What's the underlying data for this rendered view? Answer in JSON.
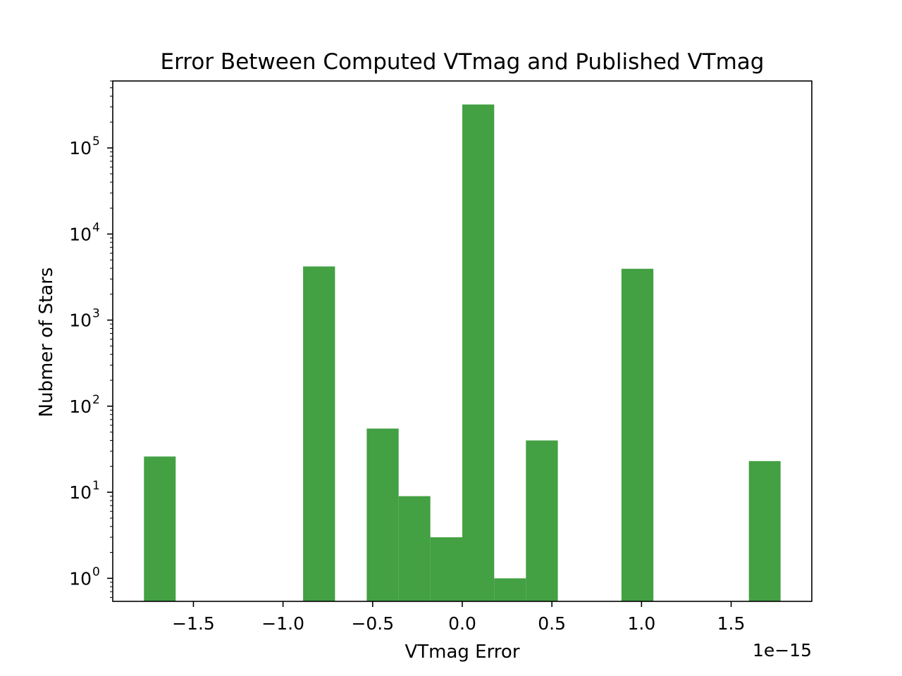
{
  "chart_data": {
    "type": "bar",
    "title": "Error Between Computed VTmag and Published VTmag",
    "xlabel": "VTmag Error",
    "ylabel": "Nubmer of Stars",
    "x_offset_label": "1e−15",
    "x_multiplier": 1e-15,
    "xlim": [
      -1.95,
      1.95
    ],
    "ylim": [
      0.54,
      600000
    ],
    "y_scale": "log",
    "bar_color": "#43a043",
    "grid": false,
    "legend": "none",
    "bin_edges": [
      -1.776,
      -1.599,
      -1.421,
      -1.243,
      -1.066,
      -0.888,
      -0.71,
      -0.533,
      -0.355,
      -0.178,
      0.0,
      0.178,
      0.355,
      0.533,
      0.71,
      0.888,
      1.066,
      1.243,
      1.421,
      1.599,
      1.776
    ],
    "values": [
      26,
      0,
      0,
      0,
      0,
      4200,
      0,
      55,
      9,
      3,
      320000,
      1,
      40,
      0,
      0,
      3950,
      0,
      0,
      0,
      23
    ],
    "x_ticks": [
      {
        "value": -1.5,
        "label": "−1.5"
      },
      {
        "value": -1.0,
        "label": "−1.0"
      },
      {
        "value": -0.5,
        "label": "−0.5"
      },
      {
        "value": 0.0,
        "label": "0.0"
      },
      {
        "value": 0.5,
        "label": "0.5"
      },
      {
        "value": 1.0,
        "label": "1.0"
      },
      {
        "value": 1.5,
        "label": "1.5"
      }
    ],
    "y_ticks": [
      {
        "value": 1,
        "base": "10",
        "exp": "0"
      },
      {
        "value": 10,
        "base": "10",
        "exp": "1"
      },
      {
        "value": 100,
        "base": "10",
        "exp": "2"
      },
      {
        "value": 1000,
        "base": "10",
        "exp": "3"
      },
      {
        "value": 10000,
        "base": "10",
        "exp": "4"
      },
      {
        "value": 100000,
        "base": "10",
        "exp": "5"
      }
    ]
  }
}
